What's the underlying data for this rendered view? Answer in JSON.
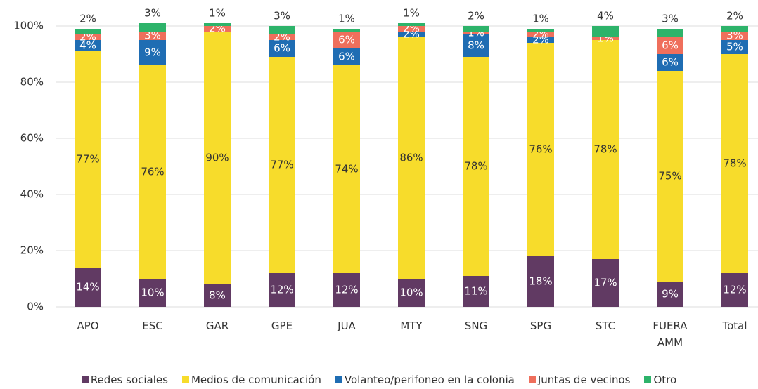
{
  "chart_data": {
    "type": "stacked_bar",
    "categories": [
      "APO",
      "ESC",
      "GAR",
      "GPE",
      "JUA",
      "MTY",
      "SNG",
      "SPG",
      "STC",
      "FUERA AMM",
      "Total"
    ],
    "ylim": [
      0,
      100
    ],
    "yticks": [
      {
        "value": 0,
        "label": "0%"
      },
      {
        "value": 20,
        "label": "20%"
      },
      {
        "value": 40,
        "label": "40%"
      },
      {
        "value": 60,
        "label": "60%"
      },
      {
        "value": 80,
        "label": "80%"
      },
      {
        "value": 100,
        "label": "100%"
      }
    ],
    "series": [
      {
        "name": "Redes sociales",
        "color": "#613a63",
        "values": [
          14,
          10,
          8,
          12,
          12,
          10,
          11,
          18,
          17,
          9,
          12
        ],
        "value_labels": [
          "14%",
          "10%",
          "8%",
          "12%",
          "12%",
          "10%",
          "11%",
          "18%",
          "17%",
          "9%",
          "12%"
        ]
      },
      {
        "name": "Medios de comunicación",
        "color": "#f7dc2b",
        "values": [
          77,
          76,
          90,
          77,
          74,
          86,
          78,
          76,
          78,
          75,
          78
        ],
        "value_labels": [
          "77%",
          "76%",
          "90%",
          "77%",
          "74%",
          "86%",
          "78%",
          "76%",
          "78%",
          "75%",
          "78%"
        ]
      },
      {
        "name": "Volanteo/perifoneo en la colonia",
        "color": "#1f6db3",
        "values": [
          4,
          9,
          0,
          6,
          6,
          2,
          8,
          2,
          0,
          6,
          5
        ],
        "value_labels": [
          "4%",
          "9%",
          null,
          "6%",
          "6%",
          "2%",
          "8%",
          "2%",
          null,
          "6%",
          "5%"
        ]
      },
      {
        "name": "Juntas de vecinos",
        "color": "#ef6f5c",
        "values": [
          2,
          3,
          2,
          2,
          6,
          2,
          1,
          2,
          1,
          6,
          3
        ],
        "value_labels": [
          "2%",
          "3%",
          "2%",
          "2%",
          "6%",
          "2%",
          "1%",
          "2%",
          "1%",
          "6%",
          "3%"
        ]
      },
      {
        "name": "Otro",
        "color": "#2db36a",
        "values": [
          2,
          3,
          1,
          3,
          1,
          1,
          2,
          1,
          4,
          3,
          2
        ],
        "value_labels": [
          "2%",
          "3%",
          "1%",
          "3%",
          "1%",
          "1%",
          "2%",
          "1%",
          "4%",
          "3%",
          "2%"
        ]
      }
    ]
  }
}
